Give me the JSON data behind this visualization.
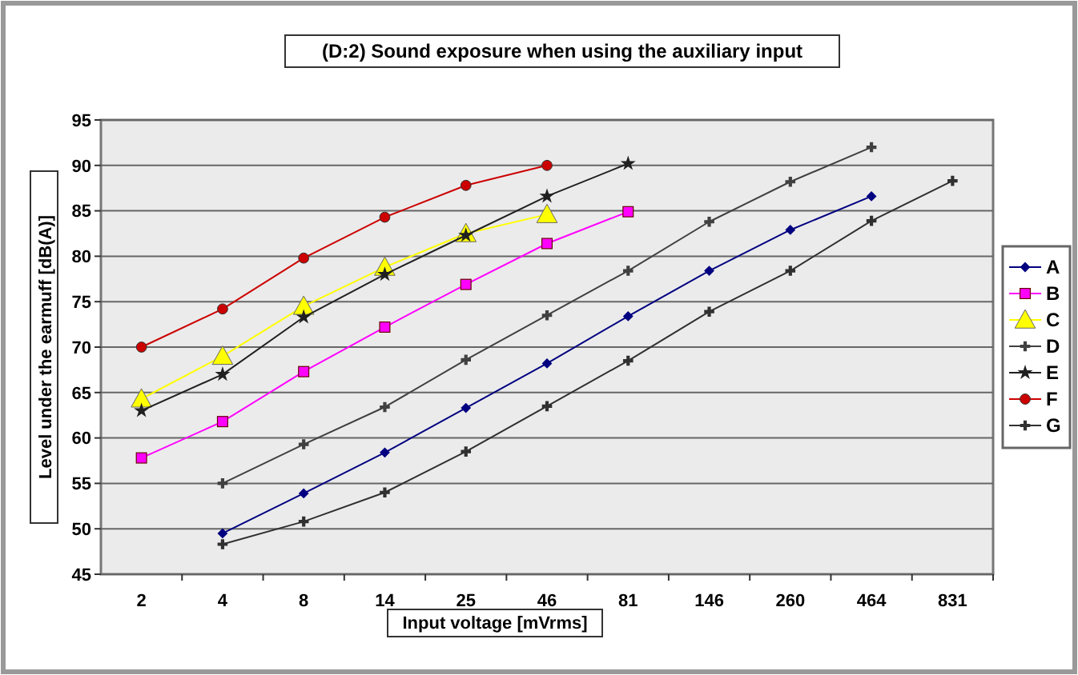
{
  "chart_data": {
    "type": "line",
    "title": "(D:2) Sound exposure when using the auxiliary input",
    "xlabel": "Input voltage [mVrms]",
    "ylabel": "Level under the earmuff [dB(A)]",
    "categories": [
      "2",
      "4",
      "8",
      "14",
      "25",
      "46",
      "81",
      "146",
      "260",
      "464",
      "831"
    ],
    "ylim": [
      45,
      95
    ],
    "yticks": [
      45,
      50,
      55,
      60,
      65,
      70,
      75,
      80,
      85,
      90,
      95
    ],
    "grid": "y",
    "legend": "right",
    "series": [
      {
        "name": "A",
        "color": "#000080",
        "marker": "diamond",
        "values": [
          null,
          49.5,
          53.9,
          58.4,
          63.3,
          68.2,
          73.4,
          78.4,
          82.9,
          86.6,
          null
        ]
      },
      {
        "name": "B",
        "color": "#ff00ff",
        "marker": "square",
        "values": [
          57.8,
          61.8,
          67.3,
          72.2,
          76.9,
          81.4,
          84.9,
          null,
          null,
          null,
          null
        ]
      },
      {
        "name": "C",
        "color": "#ffff00",
        "marker": "triangle",
        "values": [
          64.3,
          69,
          74.5,
          78.8,
          82.5,
          84.6,
          null,
          null,
          null,
          null,
          null
        ]
      },
      {
        "name": "D",
        "color": "#404040",
        "marker": "cross",
        "values": [
          null,
          55,
          59.3,
          63.4,
          68.6,
          73.5,
          78.4,
          83.8,
          88.2,
          92,
          null
        ]
      },
      {
        "name": "E",
        "color": "#202020",
        "marker": "star",
        "values": [
          63,
          67,
          73.3,
          78,
          82.3,
          86.6,
          90.2,
          null,
          null,
          null,
          null
        ]
      },
      {
        "name": "F",
        "color": "#cc0000",
        "marker": "circle",
        "values": [
          70,
          74.2,
          79.8,
          84.3,
          87.8,
          90,
          null,
          null,
          null,
          null,
          null
        ]
      },
      {
        "name": "G",
        "color": "#303030",
        "marker": "cross",
        "values": [
          null,
          48.3,
          50.8,
          54,
          58.5,
          63.5,
          68.5,
          73.9,
          78.4,
          83.9,
          88.3
        ]
      }
    ]
  }
}
